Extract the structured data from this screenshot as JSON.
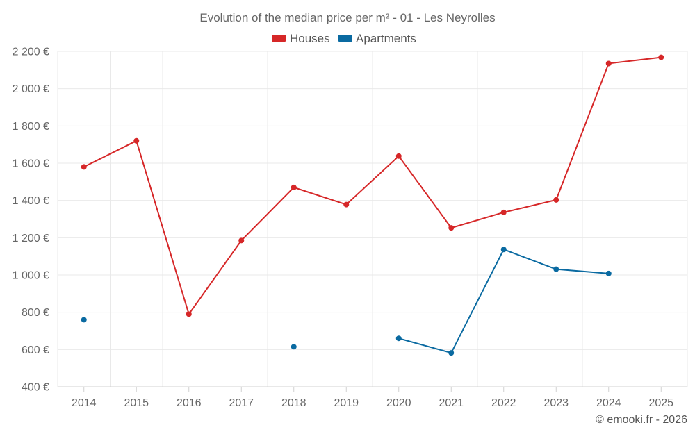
{
  "chart_data": {
    "type": "line",
    "title": "Evolution of the median price per m² - 01 - Les Neyrolles",
    "categories": [
      "2014",
      "2015",
      "2016",
      "2017",
      "2018",
      "2019",
      "2020",
      "2021",
      "2022",
      "2023",
      "2024",
      "2025"
    ],
    "series": [
      {
        "name": "Houses",
        "color": "#d62728",
        "values": [
          1580,
          1720,
          790,
          1185,
          1470,
          1378,
          1638,
          1253,
          1336,
          1403,
          2135,
          2168
        ]
      },
      {
        "name": "Apartments",
        "color": "#0a6aa1",
        "values": [
          760,
          null,
          null,
          null,
          615,
          null,
          660,
          582,
          1137,
          1031,
          1008,
          null
        ]
      }
    ],
    "ylim": [
      400,
      2200
    ],
    "yticks": [
      400,
      600,
      800,
      1000,
      1200,
      1400,
      1600,
      1800,
      2000,
      2200
    ],
    "ytick_labels": [
      "400 €",
      "600 €",
      "800 €",
      "1 000 €",
      "1 200 €",
      "1 400 €",
      "1 600 €",
      "1 800 €",
      "2 000 €",
      "2 200 €"
    ],
    "grid": true,
    "legend_position": "top-center"
  },
  "credit": "© emooki.fr - 2026"
}
